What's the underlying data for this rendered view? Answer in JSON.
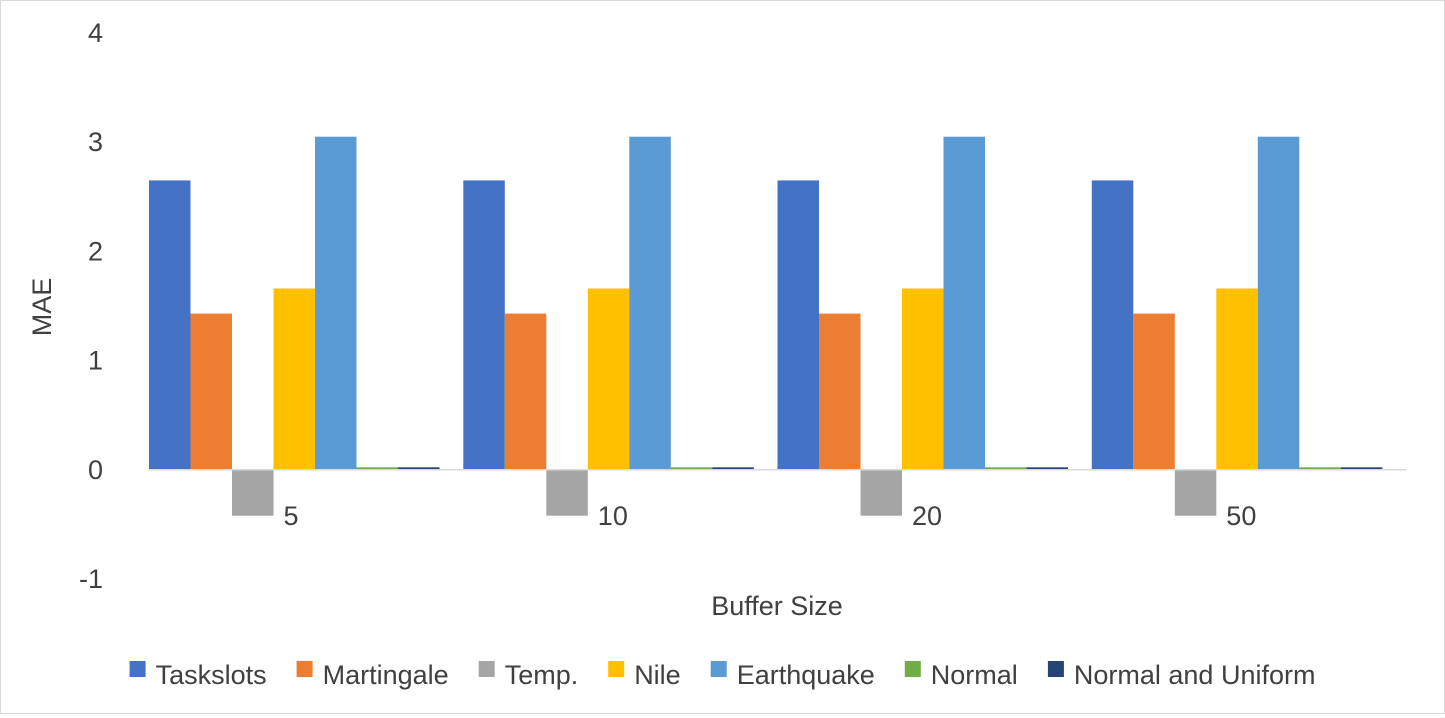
{
  "chart_data": {
    "type": "bar",
    "title": "",
    "xlabel": "Buffer Size",
    "ylabel": "MAE",
    "ylim": [
      -1,
      4
    ],
    "yticks": [
      -1,
      0,
      1,
      2,
      3,
      4
    ],
    "ytick_labels": [
      "-1",
      "0",
      "1",
      "2",
      "3",
      "4"
    ],
    "grid": false,
    "legend_position": "bottom",
    "categories": [
      "5",
      "10",
      "20",
      "50"
    ],
    "series": [
      {
        "name": "Taskslots",
        "color": "#4472c4",
        "values": [
          2.65,
          2.65,
          2.65,
          2.65
        ]
      },
      {
        "name": "Martingale",
        "color": "#ed7d31",
        "values": [
          1.43,
          1.43,
          1.43,
          1.43
        ]
      },
      {
        "name": "Temp.",
        "color": "#a5a5a5",
        "values": [
          -0.42,
          -0.42,
          -0.42,
          -0.42
        ]
      },
      {
        "name": "Nile",
        "color": "#ffc000",
        "values": [
          1.66,
          1.66,
          1.66,
          1.66
        ]
      },
      {
        "name": "Earthquake",
        "color": "#5b9bd5",
        "values": [
          3.05,
          3.05,
          3.05,
          3.05
        ]
      },
      {
        "name": "Normal",
        "color": "#70ad47",
        "values": [
          0.0,
          0.0,
          0.0,
          0.0
        ]
      },
      {
        "name": "Normal and Uniform",
        "color": "#264478",
        "values": [
          0.01,
          0.01,
          0.01,
          0.01
        ]
      }
    ]
  }
}
